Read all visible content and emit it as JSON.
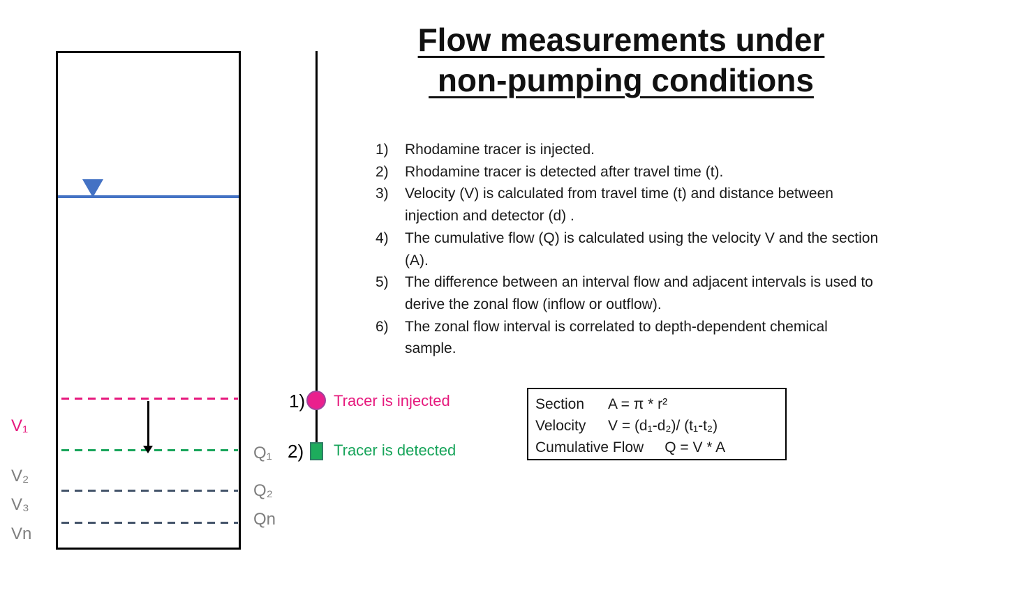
{
  "title": {
    "line1": "Flow measurements under",
    "line2": " non-pumping conditions"
  },
  "steps": [
    {
      "num": "1)",
      "line1": "Rhodamine tracer is injected.",
      "line2": ""
    },
    {
      "num": "2)",
      "line1": "Rhodamine tracer is detected after travel time (t).",
      "line2": ""
    },
    {
      "num": "3)",
      "line1": "Velocity (V) is calculated from travel time (t) and distance between",
      "line2": "injection and detector (d) ."
    },
    {
      "num": "4)",
      "line1": "The cumulative flow (Q) is calculated using the velocity V and the section",
      "line2": "(A)."
    },
    {
      "num": "5)",
      "line1": "The difference between an interval flow and adjacent intervals is used to",
      "line2": "derive the zonal flow (inflow or outflow)."
    },
    {
      "num": "6)",
      "line1": "The zonal flow interval is correlated to depth-dependent chemical",
      "line2": "sample."
    }
  ],
  "well": {
    "v_labels": {
      "v1": "V₁",
      "v2": "V₂",
      "v3": "V₃",
      "vn": "Vn"
    },
    "q_labels": {
      "q1": "Q₁",
      "q2": "Q₂",
      "qn": "Qn"
    }
  },
  "tracer": {
    "marker1_num": "1)",
    "marker1_label": "Tracer is injected",
    "marker2_num": "2)",
    "marker2_label": "Tracer is detected"
  },
  "formulas": [
    {
      "label": "Section",
      "expr": "A = π * r²"
    },
    {
      "label": "Velocity",
      "expr": "V = (d₁-d₂)/ (t₁-t₂)"
    },
    {
      "label": "Cumulative Flow",
      "expr": "Q = V * A"
    }
  ],
  "colors": {
    "injection_pink": "#e6197d",
    "detection_green": "#17a45a",
    "interval_slate": "#44546a",
    "label_gray": "#7f7f7f",
    "water_blue": "#4472c4"
  }
}
